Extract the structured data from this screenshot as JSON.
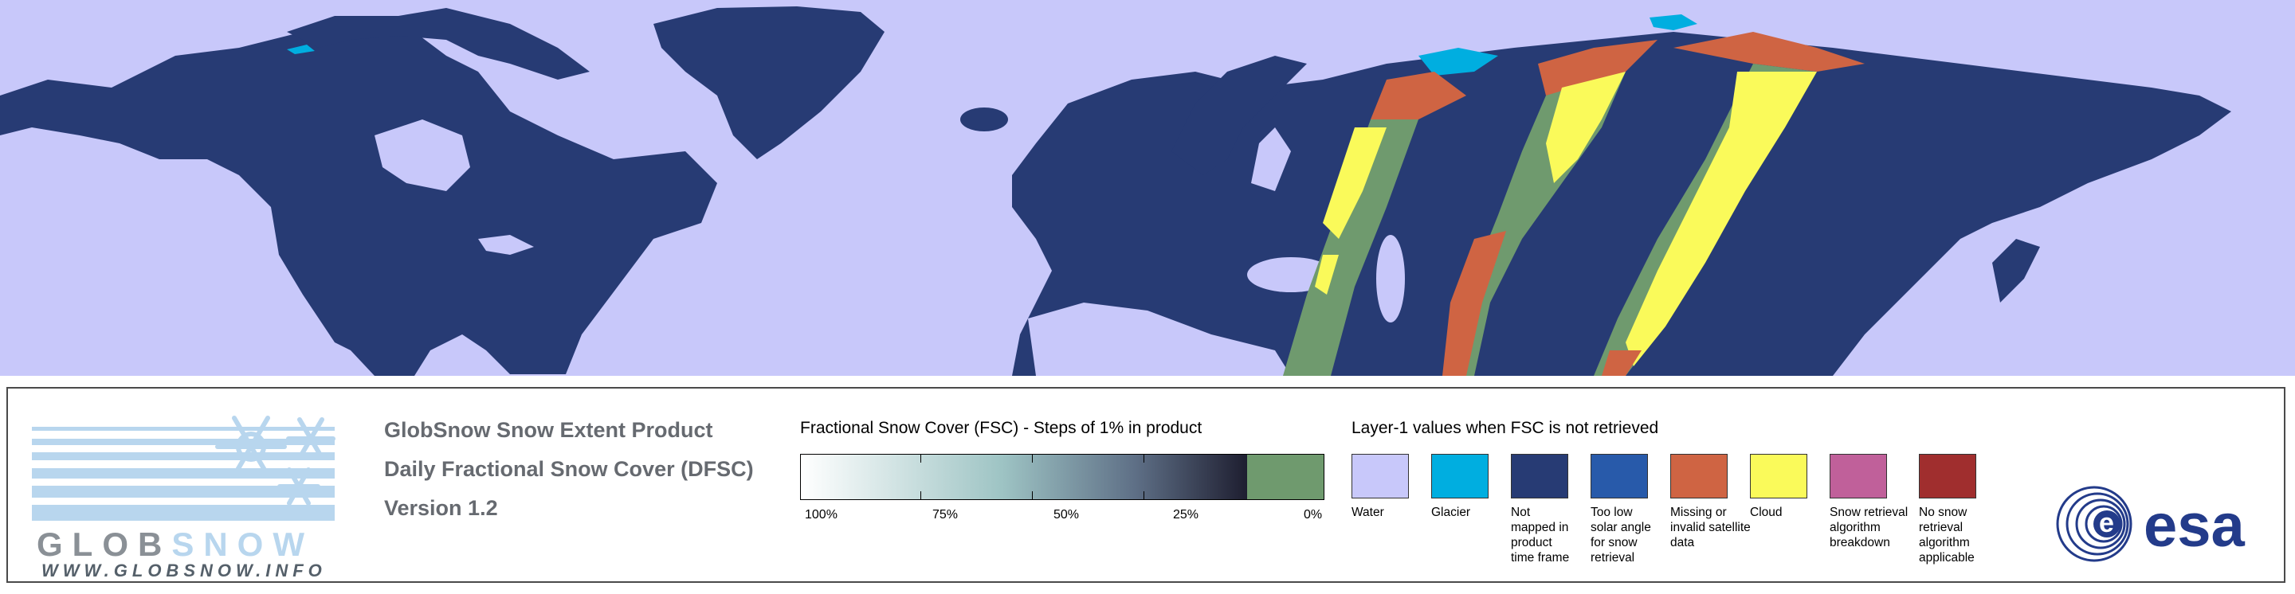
{
  "map": {
    "colors": {
      "water": "#c8c8fa",
      "land_not_mapped": "#273b74",
      "missing_data": "#cf6443",
      "cloud": "#fafa5a",
      "fsc_zero": "#6f9a6e",
      "glacier": "#00aee0"
    }
  },
  "logo": {
    "wordmark": "GLOBSNOW",
    "url": "WWW.GLOBSNOW.INFO",
    "icon": "snowflake-icon",
    "color_dark": "#8a9096",
    "color_light": "#b8d6ee"
  },
  "titles": {
    "product": "GlobSnow Snow Extent Product",
    "subtitle": "Daily Fractional Snow Cover (DFSC)",
    "version": "Version 1.2"
  },
  "fsc_legend": {
    "title": "Fractional Snow Cover (FSC) - Steps of 1% in product",
    "labels": [
      "100%",
      "75%",
      "50%",
      "25%",
      "0%"
    ],
    "zero_color": "#6f9a6e"
  },
  "layer1_legend": {
    "title": "Layer-1 values when FSC is not retrieved",
    "items": [
      {
        "label": "Water",
        "color": "#c8c8fa"
      },
      {
        "label": "Glacier",
        "color": "#00aee0"
      },
      {
        "label": "Not mapped in product time frame",
        "color": "#273b74"
      },
      {
        "label": "Too low solar angle for snow retrieval",
        "color": "#285aaa"
      },
      {
        "label": "Missing or invalid satellite data",
        "color": "#cf6443"
      },
      {
        "label": "Cloud",
        "color": "#fafa5a"
      },
      {
        "label": "Snow retrieval algorithm breakdown",
        "color": "#c0609a"
      },
      {
        "label": "No snow retrieval algorithm applicable",
        "color": "#a02e2e"
      }
    ]
  },
  "esa_logo": {
    "text": "esa",
    "color": "#233b8a"
  }
}
